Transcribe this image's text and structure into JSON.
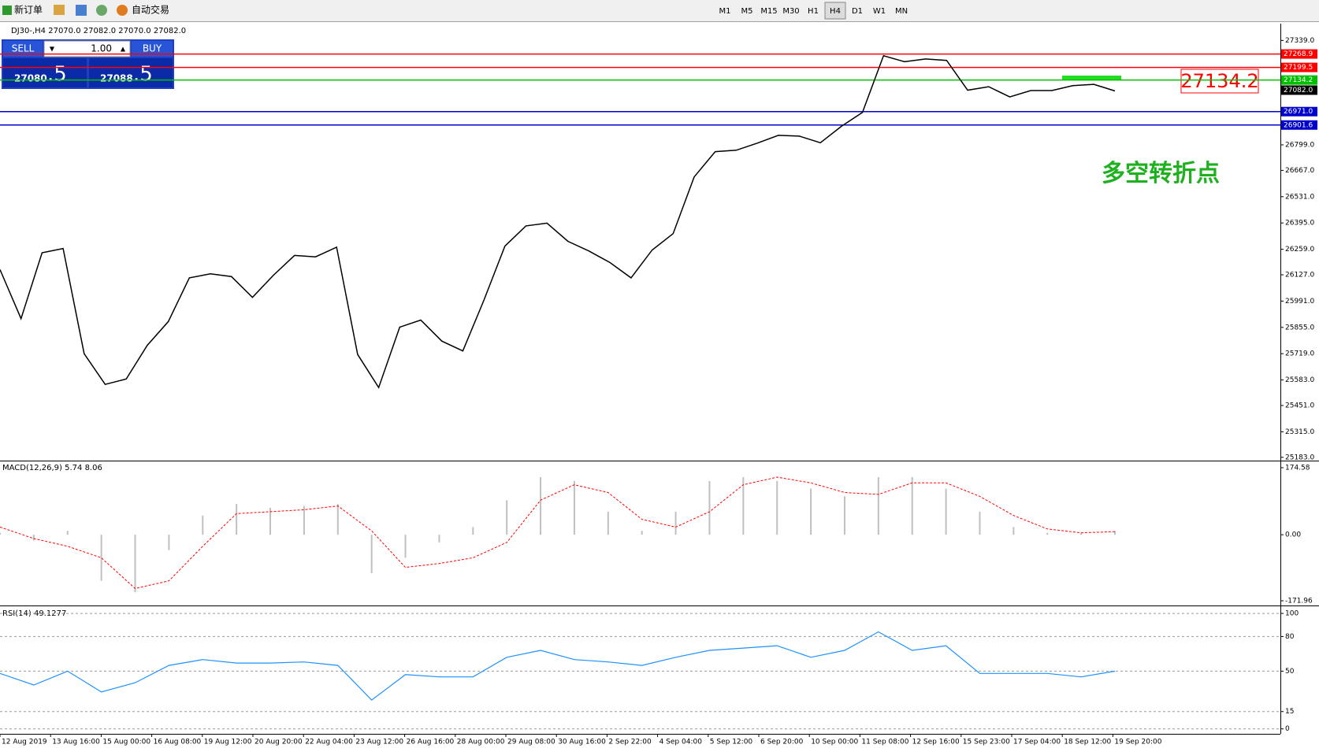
{
  "toolbar": {
    "new_order": "新订单",
    "auto_trading": "自动交易",
    "timeframes": [
      "M1",
      "M5",
      "M15",
      "M30",
      "H1",
      "H4",
      "D1",
      "W1",
      "MN"
    ],
    "active_timeframe": "H4"
  },
  "trade_panel": {
    "sell": "SELL",
    "buy": "BUY",
    "lots": "1.00",
    "sell_price": "27080",
    "sell_fraction": ".5",
    "buy_price": "27088",
    "buy_fraction": ".5"
  },
  "chart": {
    "info": "DJ30-,H4  27070.0 27082.0 27070.0 27082.0",
    "ylim": [
      25170,
      27426
    ],
    "yticks": [
      {
        "value": 27339,
        "label": "27339.0"
      },
      {
        "value": 26799,
        "label": "26799.0"
      },
      {
        "value": 26667,
        "label": "26667.0"
      },
      {
        "value": 26531,
        "label": "26531.0"
      },
      {
        "value": 26395,
        "label": "26395.0"
      },
      {
        "value": 26259,
        "label": "26259.0"
      },
      {
        "value": 26127,
        "label": "26127.0"
      },
      {
        "value": 25991,
        "label": "25991.0"
      },
      {
        "value": 25855,
        "label": "25855.0"
      },
      {
        "value": 25719,
        "label": "25719.0"
      },
      {
        "value": 25583,
        "label": "25583.0"
      },
      {
        "value": 25451,
        "label": "25451.0"
      },
      {
        "value": 25315,
        "label": "25315.0"
      },
      {
        "value": 25183,
        "label": "25183.0"
      }
    ],
    "price_lines": [
      {
        "value": 27268.9,
        "label": "27268.9",
        "color": "#ff0000"
      },
      {
        "value": 27199.5,
        "label": "27199.5",
        "color": "#ff0000"
      },
      {
        "value": 27134.2,
        "label": "27134.2",
        "color": "#00c000"
      },
      {
        "value": 26971.0,
        "label": "26971.0",
        "color": "#0000cc"
      },
      {
        "value": 26901.6,
        "label": "26901.6",
        "color": "#0000cc"
      }
    ],
    "current": {
      "value": 27082.0,
      "label": "27082.0"
    },
    "closes": [
      26154,
      25900,
      26241,
      26263,
      25719,
      25560,
      25588,
      25762,
      25885,
      26111,
      26132,
      26118,
      26010,
      26125,
      26227,
      26220,
      26270,
      25715,
      25544,
      25856,
      25893,
      25784,
      25733,
      25995,
      26275,
      26380,
      26394,
      26300,
      26250,
      26190,
      26111,
      26255,
      26340,
      26633,
      26764,
      26771,
      26808,
      26848,
      26844,
      26810,
      26895,
      26967,
      27260,
      27229,
      27243,
      27236,
      27082,
      27100,
      27047,
      27080,
      27080,
      27105,
      27112,
      27078
    ],
    "line_color": "#000000",
    "annotation": "多空转折点",
    "callout": "27134.2",
    "dates": [
      "12 Aug 2019",
      "13 Aug 16:00",
      "15 Aug 00:00",
      "16 Aug 08:00",
      "19 Aug 12:00",
      "20 Aug 20:00",
      "22 Aug 04:00",
      "23 Aug 12:00",
      "26 Aug 16:00",
      "28 Aug 00:00",
      "29 Aug 08:00",
      "30 Aug 16:00",
      "2 Sep 22:00",
      "4 Sep 04:00",
      "5 Sep 12:00",
      "6 Sep 20:00",
      "10 Sep 00:00",
      "11 Sep 08:00",
      "12 Sep 16:00",
      "15 Sep 23:00",
      "17 Sep 04:00",
      "18 Sep 12:00",
      "19 Sep 20:00"
    ]
  },
  "macd": {
    "label": "MACD(12,26,9) 5.74 8.06",
    "ylim": [
      -182.2,
      188.9
    ],
    "yticks": [
      174.58,
      {
        "value": 0,
        "label": "0.00"
      },
      -171.96
    ],
    "histogram": [
      5,
      -15,
      10,
      -120,
      -150,
      -40,
      50,
      80,
      70,
      75,
      80,
      -100,
      -60,
      -20,
      20,
      90,
      150,
      140,
      60,
      10,
      60,
      140,
      150,
      140,
      120,
      100,
      150,
      150,
      120,
      60,
      20,
      5,
      5,
      10
    ],
    "signal": [
      20,
      -10,
      -30,
      -60,
      -140,
      -120,
      -30,
      55,
      60,
      65,
      75,
      10,
      -85,
      -75,
      -60,
      -20,
      90,
      130,
      110,
      40,
      20,
      60,
      130,
      150,
      135,
      110,
      105,
      135,
      135,
      100,
      50,
      15,
      5,
      8
    ],
    "hist_color": "#c0c0c0",
    "signal_color": "#ff0000"
  },
  "rsi": {
    "label": "RSI(14) 49.1277",
    "ylim": [
      -3.6,
      105.5
    ],
    "yticks": [
      100,
      80,
      50,
      15,
      0
    ],
    "values": [
      48,
      38,
      50,
      32,
      40,
      55,
      60,
      57,
      57,
      58,
      55,
      25,
      47,
      45,
      45,
      62,
      68,
      60,
      58,
      55,
      62,
      68,
      70,
      72,
      62,
      68,
      84,
      68,
      72,
      48,
      48,
      48,
      45,
      50
    ],
    "color": "#1e90ff"
  }
}
